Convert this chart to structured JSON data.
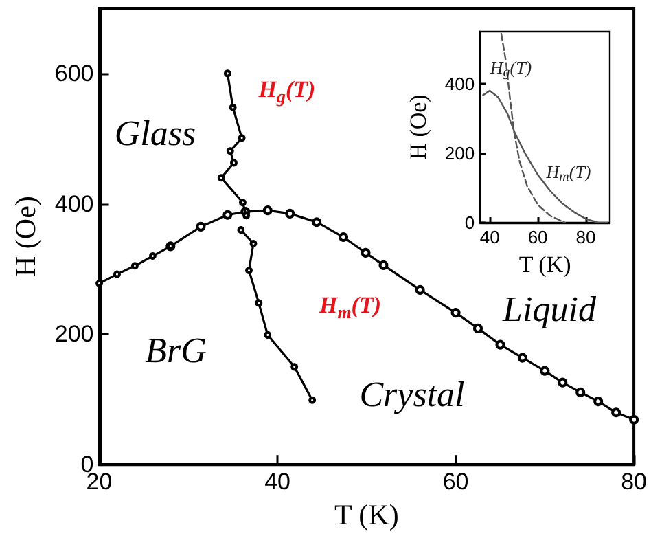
{
  "chart_data": [
    {
      "type": "line",
      "xlabel": "T (K)",
      "ylabel": "H (Oe)",
      "xlim": [
        20,
        80
      ],
      "xticks": [
        20,
        40,
        60,
        80
      ],
      "ylim": [
        0,
        700
      ],
      "yticks": [
        0,
        200,
        400,
        600
      ],
      "grid": false,
      "marker": "circle",
      "line_style": "solid",
      "series": [
        {
          "color": "#000000",
          "x": [
            34.4,
            35.0,
            36.0,
            34.7,
            35.1,
            33.7,
            36.1,
            36.5
          ],
          "values": [
            600,
            548,
            501,
            481,
            463,
            440,
            402,
            382
          ]
        },
        {
          "color": "#000000",
          "x": [
            35.9,
            37.3,
            36.8,
            37.9,
            38.9,
            41.9,
            43.9
          ],
          "values": [
            360,
            339,
            298,
            248,
            199,
            150,
            99
          ]
        },
        {
          "color": "#000000",
          "x": [
            20,
            22,
            24,
            26,
            28
          ],
          "values": [
            278,
            292,
            305,
            320,
            335
          ]
        },
        {
          "color": "#000000",
          "x": [
            28,
            31.4,
            34.4,
            36.4,
            38.9,
            41.4,
            44.4,
            47.4,
            49.9,
            51.9,
            56.0,
            60.0,
            62.5,
            65.0,
            67.5,
            70.0,
            72.0,
            74.0,
            76.0,
            78.0,
            80.0
          ],
          "values": [
            335,
            365,
            383,
            388,
            390,
            385,
            372,
            349,
            325,
            306,
            268,
            233,
            209,
            184,
            164,
            144,
            126,
            111,
            97,
            80,
            69
          ]
        }
      ],
      "annotations": [
        "Glass",
        "Liquid",
        "BrG",
        "Crystal",
        "H$_{g}$(T)",
        "H$_{m}$(T)"
      ]
    },
    {
      "type": "line",
      "xlabel": "T (K)",
      "ylabel": "H (Oe)",
      "xlim": [
        36,
        90
      ],
      "xticks": [
        40,
        60,
        80
      ],
      "ylim": [
        0,
        550
      ],
      "yticks": [
        0,
        200,
        400
      ],
      "grid": false,
      "marker": "none",
      "series": [
        {
          "color": "#555555",
          "line_style": "solid",
          "x": [
            37.2,
            40,
            43.5,
            47.3,
            50.5,
            54.9,
            60,
            65.1,
            70.1,
            75.2,
            80.3,
            85.3,
            89.1
          ],
          "values": [
            367,
            380,
            361,
            315,
            258,
            197,
            138,
            92,
            56,
            30,
            10,
            0,
            0
          ]
        },
        {
          "color": "#555555",
          "line_style": "dashed",
          "x": [
            44.8,
            46.7,
            48.6,
            50.1,
            52.4,
            55.6,
            60,
            65.1,
            71.4
          ],
          "values": [
            544,
            466,
            348,
            262,
            177,
            105,
            52,
            20,
            0
          ]
        }
      ],
      "annotations": [
        "H$_{g}$(T)",
        "H$_{m}$(T)"
      ]
    }
  ]
}
